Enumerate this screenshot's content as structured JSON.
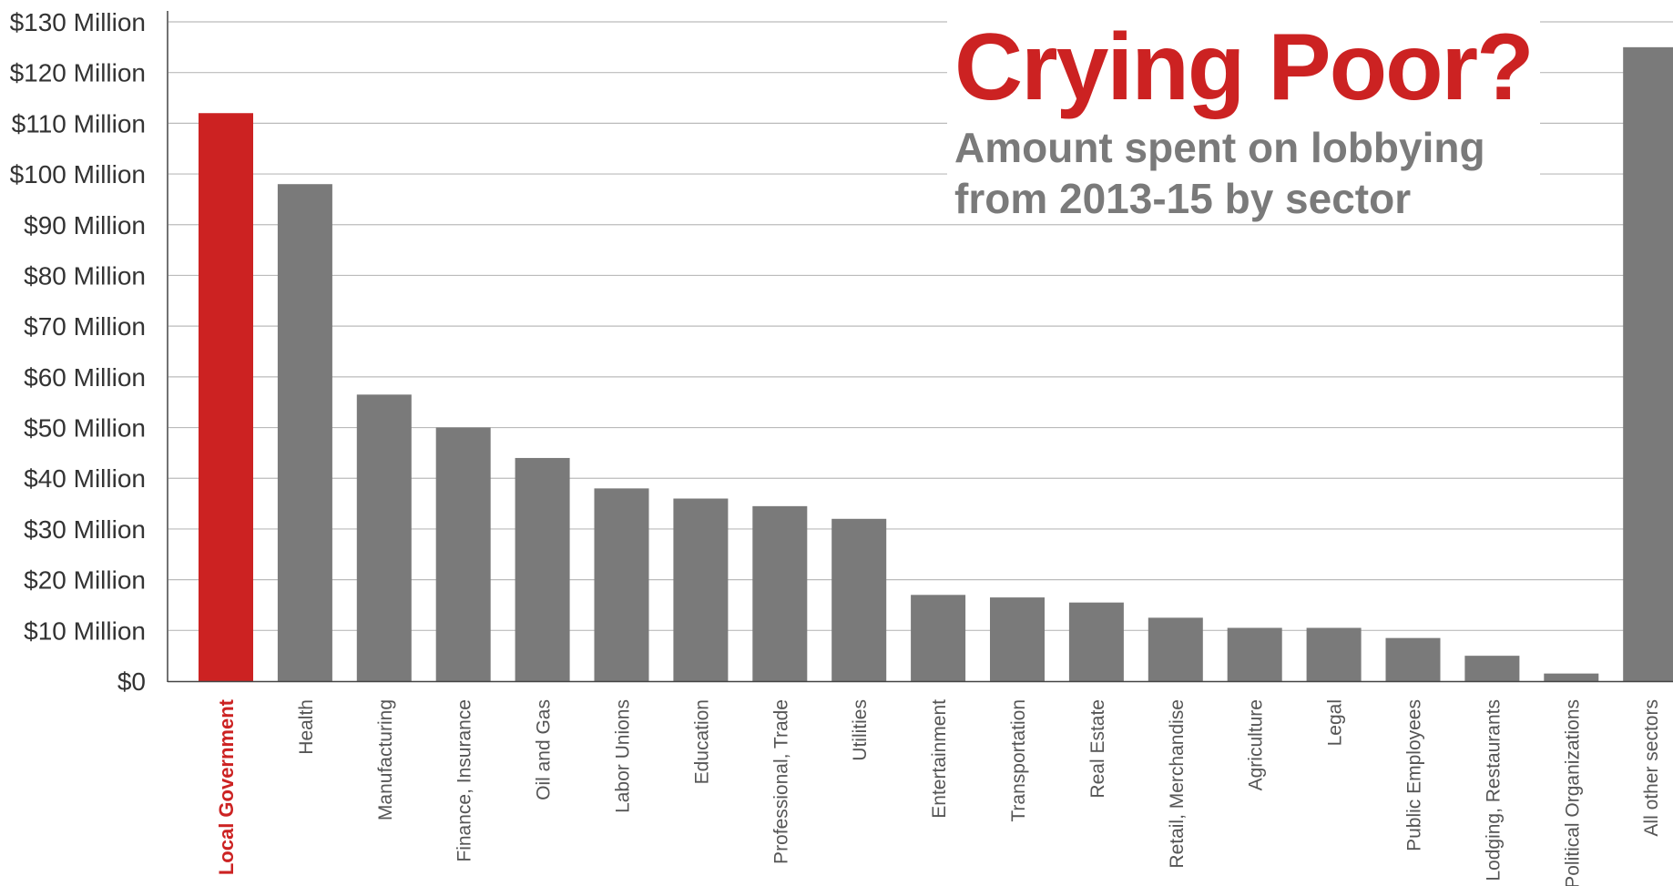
{
  "chart_data": {
    "type": "bar",
    "title": "Crying Poor?",
    "subtitle_lines": [
      "Amount spent on lobbying",
      "from 2013-15 by sector"
    ],
    "categories": [
      "Local Government",
      "Health",
      "Manufacturing",
      "Finance, Insurance",
      "Oil and Gas",
      "Labor Unions",
      "Education",
      "Professional, Trade",
      "Utilities",
      "Entertainment",
      "Transportation",
      "Real Estate",
      "Retail, Merchandise",
      "Agriculture",
      "Legal",
      "Public Employees",
      "Lodging, Restaurants",
      "Political Organizations",
      "All other sectors"
    ],
    "values": [
      112,
      98,
      56.5,
      50,
      44,
      38,
      36,
      34.5,
      32,
      17,
      16.5,
      15.5,
      12.5,
      10.5,
      10.5,
      8.5,
      5,
      1.5,
      125
    ],
    "highlight_category": "Local Government",
    "ylim": [
      0,
      130
    ],
    "yticks": [
      0,
      10,
      20,
      30,
      40,
      50,
      60,
      70,
      80,
      90,
      100,
      110,
      120,
      130
    ],
    "ytick_labels": [
      "$0",
      "$10 Million",
      "$20 Million",
      "$30 Million",
      "$40 Million",
      "$50 Million",
      "$60 Million",
      "$70 Million",
      "$80 Million",
      "$90 Million",
      "$100 Million",
      "$110 Million",
      "$120 Million",
      "$130 Million"
    ],
    "grid": true,
    "colors": {
      "highlight": "#cc2222",
      "bar": "#7a7a7a",
      "grid": "#bbbbbb",
      "axis": "#444444"
    }
  }
}
